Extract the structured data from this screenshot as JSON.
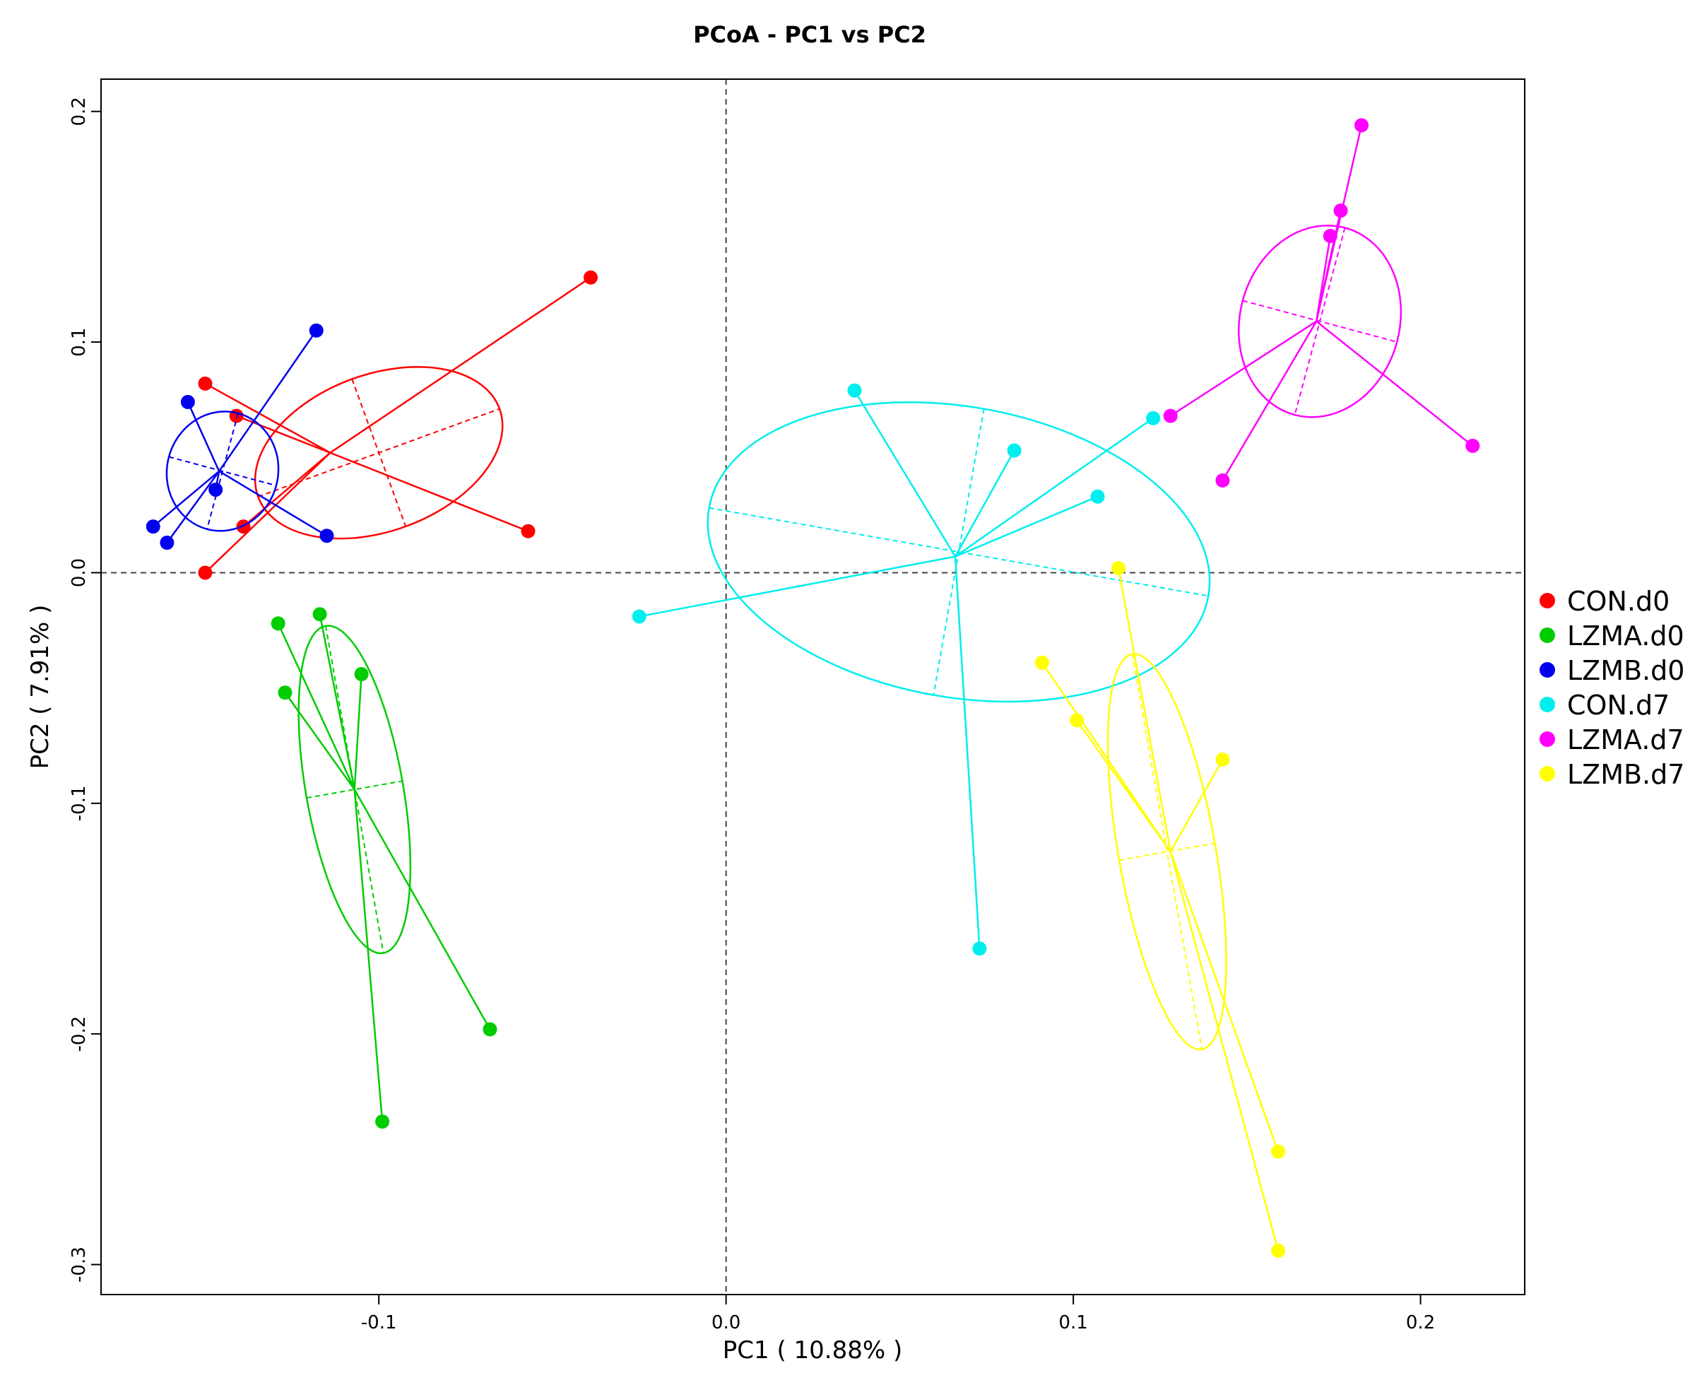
{
  "chart_data": {
    "type": "scatter",
    "title": "PCoA - PC1 vs PC2",
    "xlabel": "PC1 ( 10.88% )",
    "ylabel": "PC2 ( 7.91% )",
    "xlim": [
      -0.18,
      0.23
    ],
    "ylim": [
      -0.313,
      0.214
    ],
    "x_ticks": [
      -0.1,
      0.0,
      0.1,
      0.2
    ],
    "x_tick_labels": [
      "-0.1",
      "0.0",
      "0.1",
      "0.2"
    ],
    "y_ticks": [
      0.2,
      0.1,
      0.0,
      -0.1,
      -0.2,
      -0.3
    ],
    "y_tick_labels": [
      "0.2",
      "0.1",
      "0.0",
      "-0.1",
      "-0.2",
      "-0.3"
    ],
    "reference_lines": {
      "x": 0,
      "y": 0
    },
    "legend_position": "right",
    "series": [
      {
        "name": "CON.d0",
        "color": "#ff0000",
        "centroid": [
          -0.114,
          0.052
        ],
        "points": [
          [
            -0.039,
            0.128
          ],
          [
            -0.15,
            0.082
          ],
          [
            -0.141,
            0.068
          ],
          [
            -0.057,
            0.018
          ],
          [
            -0.139,
            0.02
          ],
          [
            -0.15,
            0.0
          ]
        ],
        "ellipse": {
          "cx": -0.1,
          "cy": 0.052,
          "rx": 0.037,
          "ry": 0.034,
          "angle_deg": -20
        }
      },
      {
        "name": "LZMA.d0",
        "color": "#00cc00",
        "centroid": [
          -0.107,
          -0.094
        ],
        "points": [
          [
            -0.129,
            -0.022
          ],
          [
            -0.117,
            -0.018
          ],
          [
            -0.105,
            -0.044
          ],
          [
            -0.127,
            -0.052
          ],
          [
            -0.068,
            -0.198
          ],
          [
            -0.099,
            -0.238
          ]
        ],
        "ellipse": {
          "cx": -0.107,
          "cy": -0.094,
          "rx": 0.014,
          "ry": 0.072,
          "angle_deg": -10
        }
      },
      {
        "name": "LZMB.d0",
        "color": "#0000ee",
        "centroid": [
          -0.146,
          0.044
        ],
        "points": [
          [
            -0.118,
            0.105
          ],
          [
            -0.155,
            0.074
          ],
          [
            -0.147,
            0.036
          ],
          [
            -0.165,
            0.02
          ],
          [
            -0.161,
            0.013
          ],
          [
            -0.115,
            0.016
          ]
        ],
        "ellipse": {
          "cx": -0.145,
          "cy": 0.044,
          "rx": 0.016,
          "ry": 0.026,
          "angle_deg": 15
        }
      },
      {
        "name": "CON.d7",
        "color": "#00eeee",
        "centroid": [
          0.066,
          0.007
        ],
        "points": [
          [
            0.037,
            0.079
          ],
          [
            0.083,
            0.053
          ],
          [
            0.123,
            0.067
          ],
          [
            0.107,
            0.033
          ],
          [
            -0.025,
            -0.019
          ],
          [
            0.073,
            -0.163
          ]
        ],
        "ellipse": {
          "cx": 0.067,
          "cy": 0.009,
          "rx": 0.073,
          "ry": 0.063,
          "angle_deg": 10
        }
      },
      {
        "name": "LZMA.d7",
        "color": "#ff00ff",
        "centroid": [
          0.17,
          0.109
        ],
        "points": [
          [
            0.183,
            0.194
          ],
          [
            0.177,
            0.157
          ],
          [
            0.174,
            0.146
          ],
          [
            0.128,
            0.068
          ],
          [
            0.143,
            0.04
          ],
          [
            0.215,
            0.055
          ]
        ],
        "ellipse": {
          "cx": 0.171,
          "cy": 0.109,
          "rx": 0.023,
          "ry": 0.042,
          "angle_deg": 15
        }
      },
      {
        "name": "LZMB.d7",
        "color": "#ffff00",
        "centroid": [
          0.128,
          -0.121
        ],
        "points": [
          [
            0.113,
            0.002
          ],
          [
            0.091,
            -0.039
          ],
          [
            0.101,
            -0.064
          ],
          [
            0.143,
            -0.081
          ],
          [
            0.159,
            -0.251
          ],
          [
            0.159,
            -0.294
          ]
        ],
        "ellipse": {
          "cx": 0.127,
          "cy": -0.121,
          "rx": 0.014,
          "ry": 0.087,
          "angle_deg": -10
        }
      }
    ]
  }
}
